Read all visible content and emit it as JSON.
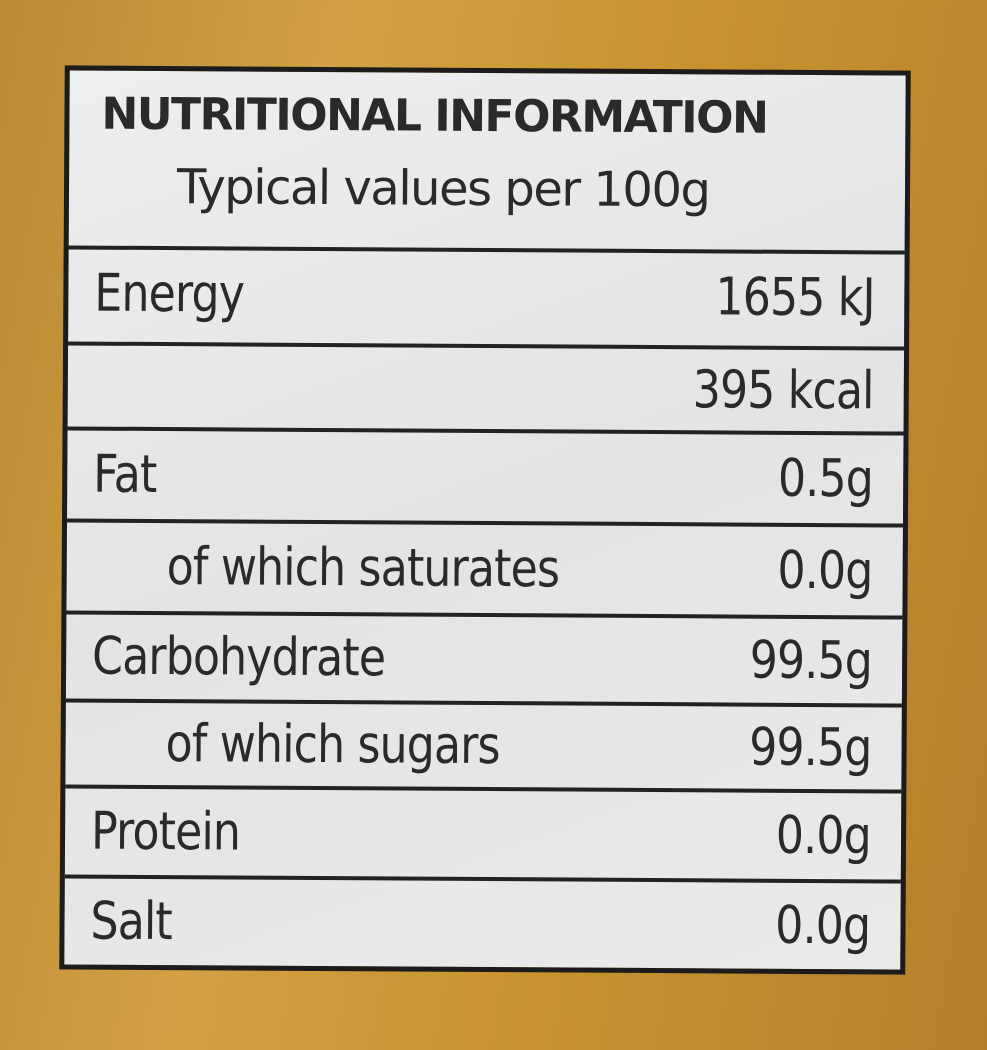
{
  "header": {
    "title": "NUTRITIONAL INFORMATION",
    "subtitle": "Typical values per 100g"
  },
  "table": {
    "rows": [
      {
        "label": "Energy",
        "value": "1655 kJ"
      },
      {
        "value": "395 kcal"
      },
      {
        "label": "Fat",
        "value": "0.5g"
      },
      {
        "label": "of which saturates",
        "value": "0.0g"
      },
      {
        "label": "Carbohydrate",
        "value": "99.5g"
      },
      {
        "label": "of which sugars",
        "value": "99.5g"
      },
      {
        "label": "Protein",
        "value": "0.0g"
      },
      {
        "label": "Salt",
        "value": "0.0g"
      }
    ]
  }
}
